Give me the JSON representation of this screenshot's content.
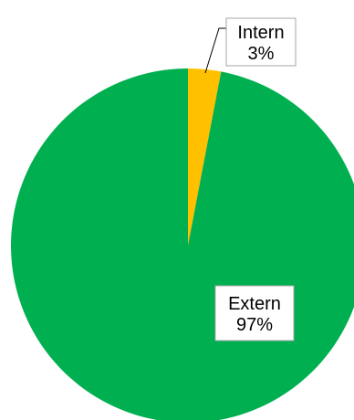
{
  "chart_data": {
    "type": "pie",
    "title": "",
    "categories": [
      "Intern",
      "Extern"
    ],
    "values": [
      3,
      97
    ],
    "value_labels": [
      "3%",
      "97%"
    ],
    "colors": [
      "#FFC000",
      "#00B050"
    ],
    "start_angle": "12 o'clock",
    "direction": "clockwise",
    "legend": "none"
  }
}
